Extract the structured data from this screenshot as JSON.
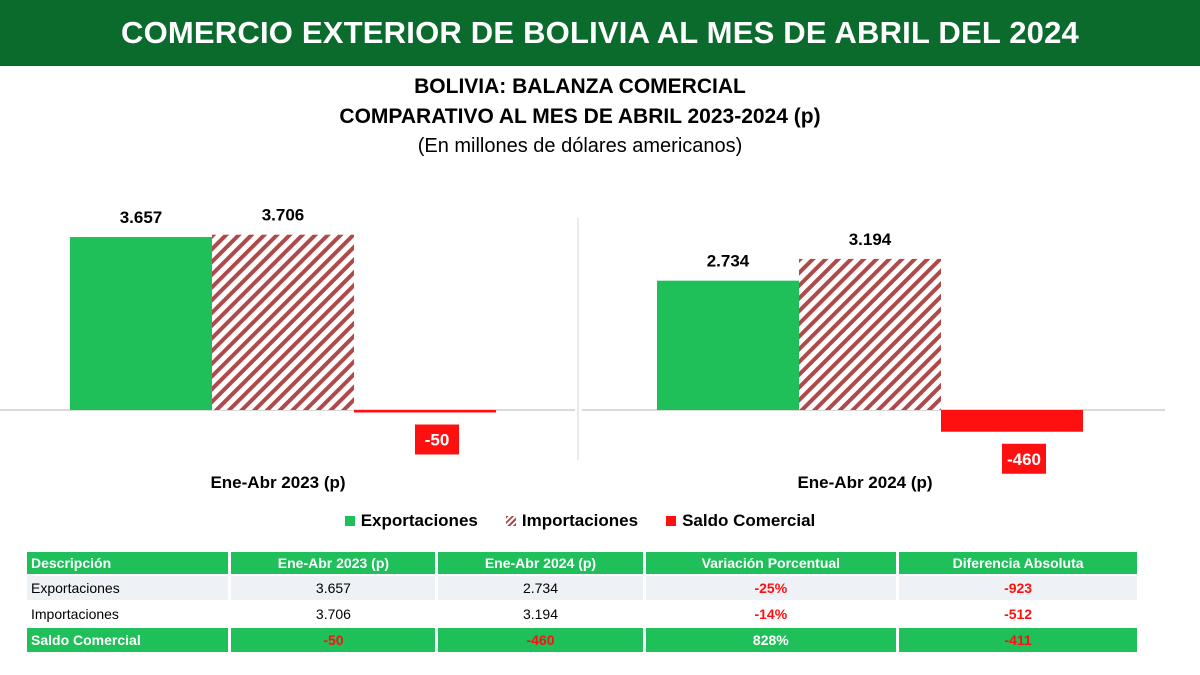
{
  "banner_title": "COMERCIO EXTERIOR DE BOLIVIA AL MES DE ABRIL DEL 2024",
  "colors": {
    "banner": "#0b6b2d",
    "exportaciones": "#1fbf5a",
    "importaciones": "#b04a4a",
    "saldo": "#ff1010"
  },
  "chart_data": {
    "type": "bar",
    "title": "BOLIVIA: BALANZA COMERCIAL",
    "subtitle": "COMPARATIVO AL MES DE ABRIL 2023-2024 (p)",
    "units_note": "(En millones de dólares americanos)",
    "categories": [
      "Ene-Abr 2023 (p)",
      "Ene-Abr 2024 (p)"
    ],
    "series": [
      {
        "name": "Exportaciones",
        "values": [
          3657,
          2734
        ],
        "labels": [
          "3.657",
          "2.734"
        ],
        "color": "#1fbf5a",
        "pattern": "solid"
      },
      {
        "name": "Importaciones",
        "values": [
          3706,
          3194
        ],
        "labels": [
          "3.706",
          "3.194"
        ],
        "color": "#b04a4a",
        "pattern": "hatched"
      },
      {
        "name": "Saldo Comercial",
        "values": [
          -50,
          -460
        ],
        "labels": [
          "-50",
          "-460"
        ],
        "color": "#ff1010",
        "pattern": "solid"
      }
    ],
    "legend_position": "bottom",
    "grid": false
  },
  "table": {
    "headers": [
      "Descripción",
      "Ene-Abr 2023 (p)",
      "Ene-Abr 2024 (p)",
      "Variación Porcentual",
      "Diferencia Absoluta"
    ],
    "rows": [
      [
        "Exportaciones",
        "3.657",
        "2.734",
        "-25%",
        "-923"
      ],
      [
        "Importaciones",
        "3.706",
        "3.194",
        "-14%",
        "-512"
      ]
    ],
    "total": [
      "Saldo Comercial",
      "-50",
      "-460",
      "828%",
      "-411"
    ]
  }
}
